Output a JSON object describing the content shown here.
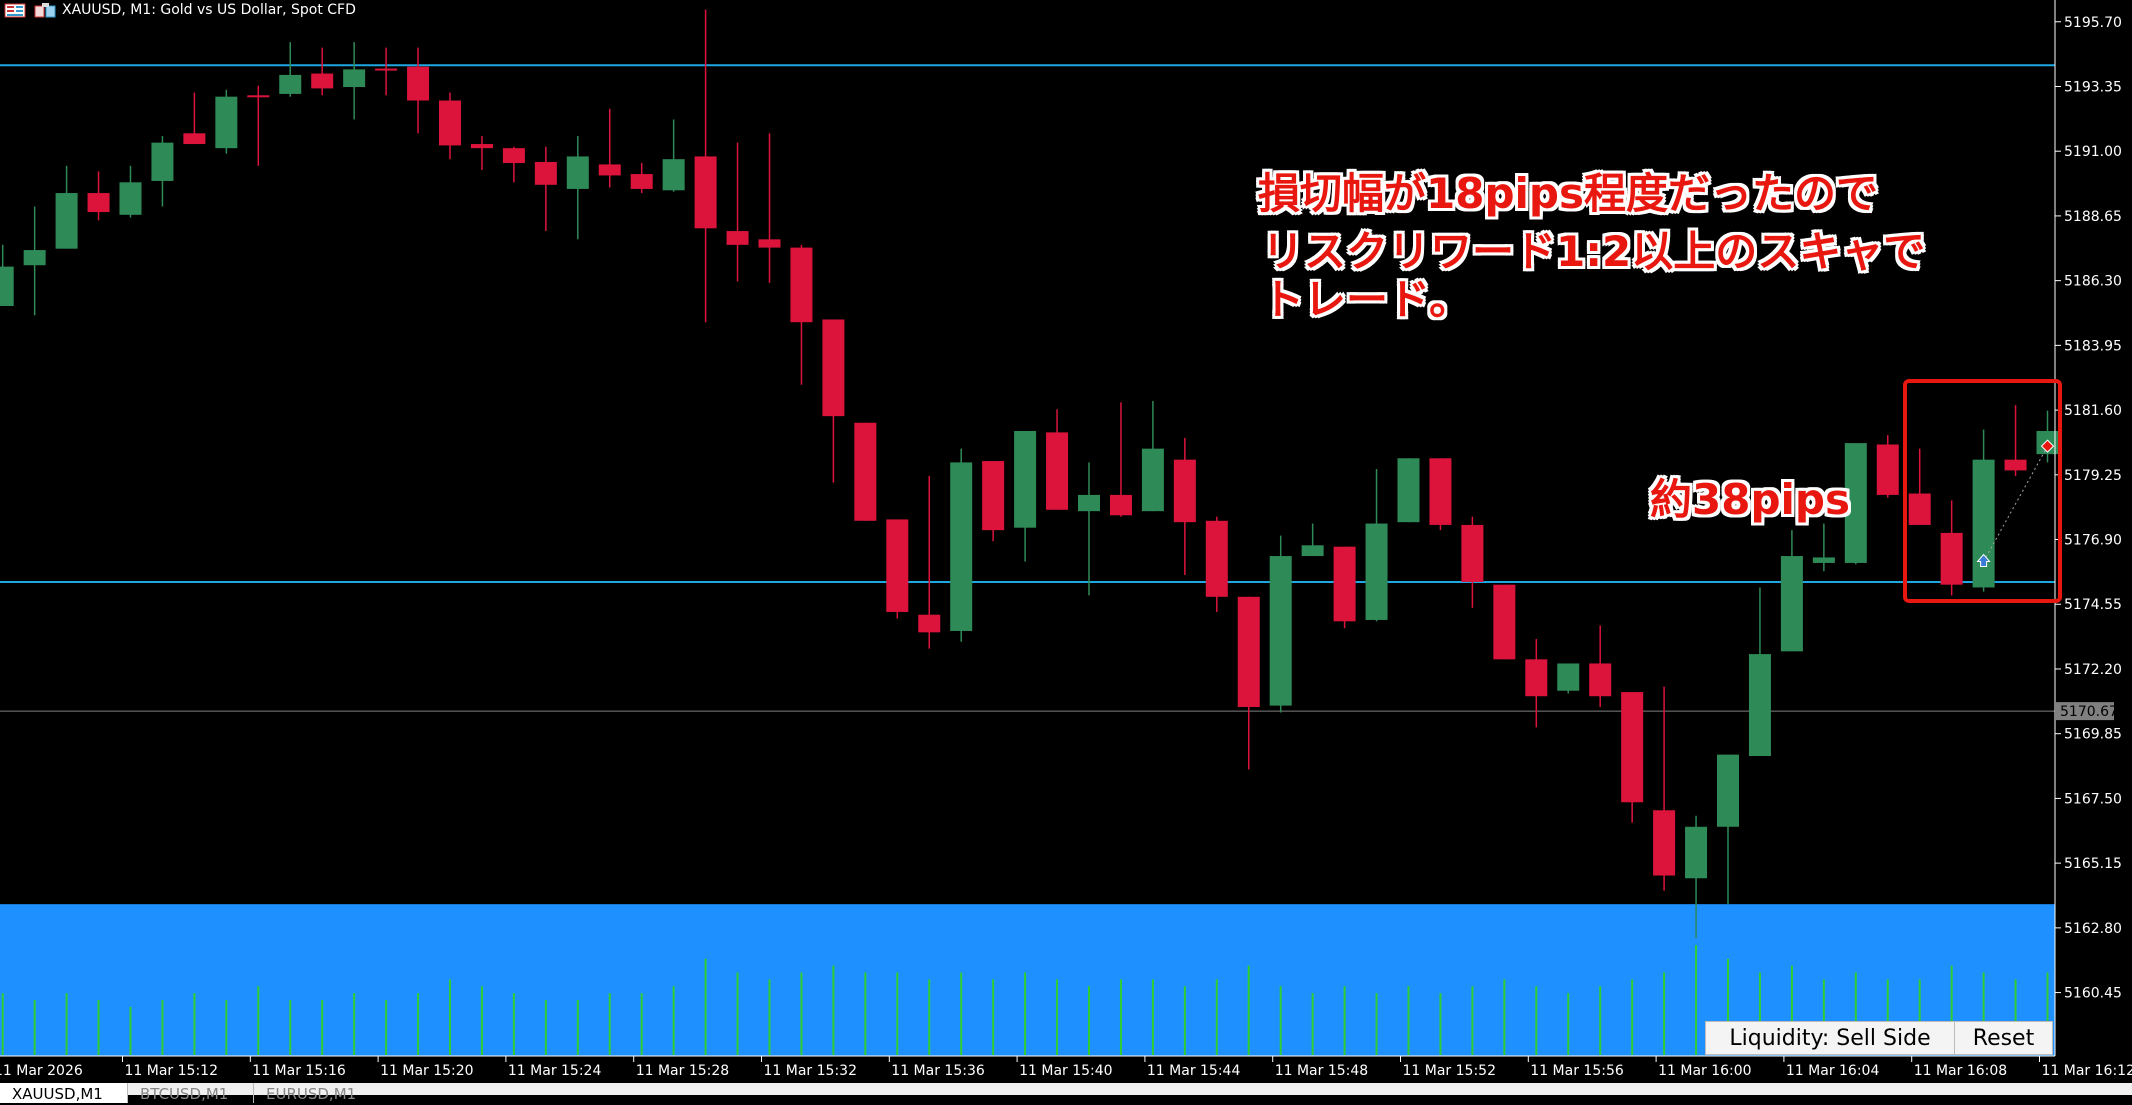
{
  "window": {
    "title": "XAUUSD, M1:  Gold vs US Dollar, Spot CFD"
  },
  "colors": {
    "bull": "#2e8b57",
    "bear": "#dc143c",
    "level_line": "#1ea7e0",
    "price_line": "#808080",
    "liquidity_zone": "#1e90ff",
    "volume": "#32cd32",
    "annotation": "#e8170f"
  },
  "chart_data": {
    "type": "candlestick",
    "symbol": "XAUUSD",
    "timeframe": "M1",
    "ylim": [
      5159.4,
      5196.5
    ],
    "price_ticks": [
      "5195.70",
      "5193.35",
      "5191.00",
      "5188.65",
      "5186.30",
      "5183.95",
      "5181.60",
      "5179.25",
      "5176.90",
      "5174.55",
      "5172.20",
      "5169.85",
      "5167.50",
      "5165.15",
      "5162.80",
      "5160.45"
    ],
    "current_price": "5170.67",
    "time_labels": [
      "11 Mar 2026",
      "11 Mar 15:12",
      "11 Mar 15:16",
      "11 Mar 15:20",
      "11 Mar 15:24",
      "11 Mar 15:28",
      "11 Mar 15:32",
      "11 Mar 15:36",
      "11 Mar 15:40",
      "11 Mar 15:44",
      "11 Mar 15:48",
      "11 Mar 15:52",
      "11 Mar 15:56",
      "11 Mar 16:00",
      "11 Mar 16:04",
      "11 Mar 16:08",
      "11 Mar 16:12"
    ],
    "horizontal_levels": [
      5194.12,
      5175.36
    ],
    "liquidity_zone_top": 5163.66,
    "ohlc": [
      [
        5185.38,
        5187.6,
        5185.38,
        5186.81
      ],
      [
        5186.86,
        5188.99,
        5185.04,
        5187.41
      ],
      [
        5187.46,
        5190.47,
        5187.46,
        5189.48
      ],
      [
        5189.48,
        5190.27,
        5188.49,
        5188.79
      ],
      [
        5188.69,
        5190.47,
        5188.59,
        5189.87
      ],
      [
        5189.92,
        5191.55,
        5188.99,
        5191.31
      ],
      [
        5191.65,
        5193.13,
        5191.26,
        5191.26
      ],
      [
        5191.11,
        5193.23,
        5190.91,
        5192.98
      ],
      [
        5193.03,
        5193.38,
        5190.47,
        5192.98
      ],
      [
        5193.08,
        5194.96,
        5192.98,
        5193.77
      ],
      [
        5193.82,
        5194.76,
        5193.03,
        5193.28
      ],
      [
        5193.33,
        5194.96,
        5192.15,
        5193.97
      ],
      [
        5194.0,
        5194.76,
        5193.03,
        5193.97
      ],
      [
        5194.07,
        5194.76,
        5191.65,
        5192.84
      ],
      [
        5192.84,
        5193.13,
        5190.71,
        5191.21
      ],
      [
        5191.26,
        5191.55,
        5190.32,
        5191.11
      ],
      [
        5191.11,
        5191.16,
        5189.87,
        5190.57
      ],
      [
        5190.61,
        5191.16,
        5188.1,
        5189.78
      ],
      [
        5189.63,
        5191.55,
        5187.8,
        5190.81
      ],
      [
        5190.52,
        5192.54,
        5189.68,
        5190.12
      ],
      [
        5190.17,
        5190.57,
        5189.48,
        5189.63
      ],
      [
        5189.58,
        5192.15,
        5189.53,
        5190.71
      ],
      [
        5190.81,
        5196.14,
        5184.79,
        5188.2
      ],
      [
        5188.1,
        5191.31,
        5186.27,
        5187.6
      ],
      [
        5187.8,
        5191.65,
        5186.22,
        5187.5
      ],
      [
        5187.5,
        5187.6,
        5182.52,
        5184.79
      ],
      [
        5184.89,
        5184.89,
        5178.96,
        5181.38
      ],
      [
        5181.14,
        5181.14,
        5177.58,
        5177.58
      ],
      [
        5177.63,
        5177.63,
        5174.03,
        5174.27
      ],
      [
        5174.17,
        5179.21,
        5172.94,
        5173.53
      ],
      [
        5173.58,
        5180.2,
        5173.19,
        5179.7
      ],
      [
        5179.75,
        5179.75,
        5176.84,
        5177.24
      ],
      [
        5177.33,
        5180.84,
        5176.1,
        5180.84
      ],
      [
        5180.79,
        5181.63,
        5177.98,
        5177.98
      ],
      [
        5177.93,
        5179.7,
        5174.87,
        5178.52
      ],
      [
        5178.52,
        5181.88,
        5177.73,
        5177.78
      ],
      [
        5177.93,
        5181.93,
        5177.93,
        5180.2
      ],
      [
        5179.8,
        5180.59,
        5175.61,
        5177.53
      ],
      [
        5177.58,
        5177.73,
        5174.27,
        5174.82
      ],
      [
        5174.82,
        5174.82,
        5168.55,
        5170.82
      ],
      [
        5170.87,
        5177.04,
        5170.62,
        5176.3
      ],
      [
        5176.3,
        5177.48,
        5176.3,
        5176.69
      ],
      [
        5176.64,
        5176.64,
        5173.68,
        5173.93
      ],
      [
        5173.98,
        5179.46,
        5173.93,
        5177.48
      ],
      [
        5177.53,
        5179.85,
        5177.53,
        5179.85
      ],
      [
        5179.85,
        5179.85,
        5177.24,
        5177.43
      ],
      [
        5177.43,
        5177.73,
        5174.42,
        5175.36
      ],
      [
        5175.26,
        5175.26,
        5172.55,
        5172.55
      ],
      [
        5172.55,
        5173.29,
        5170.08,
        5171.21
      ],
      [
        5171.41,
        5172.4,
        5171.31,
        5172.4
      ],
      [
        5172.4,
        5173.78,
        5170.82,
        5171.21
      ],
      [
        5171.36,
        5171.36,
        5166.62,
        5167.36
      ],
      [
        5167.07,
        5171.56,
        5164.15,
        5164.7
      ],
      [
        5164.6,
        5166.87,
        5162.42,
        5166.47
      ],
      [
        5166.47,
        5169.09,
        5163.66,
        5169.09
      ],
      [
        5169.04,
        5175.16,
        5169.04,
        5172.74
      ],
      [
        5172.84,
        5177.24,
        5172.84,
        5176.3
      ],
      [
        5176.05,
        5177.48,
        5175.75,
        5176.25
      ],
      [
        5176.05,
        5180.4,
        5176.0,
        5180.4
      ],
      [
        5180.35,
        5180.69,
        5178.42,
        5178.52
      ],
      [
        5178.57,
        5180.2,
        5177.43,
        5177.43
      ],
      [
        5177.14,
        5178.32,
        5174.87,
        5175.26
      ],
      [
        5175.16,
        5180.89,
        5175.01,
        5179.8
      ],
      [
        5179.8,
        5181.78,
        5179.21,
        5179.41
      ],
      [
        5180.0,
        5181.58,
        5179.7,
        5180.84
      ]
    ],
    "volume": [
      45,
      40,
      45,
      40,
      35,
      40,
      45,
      40,
      50,
      40,
      40,
      45,
      40,
      45,
      55,
      50,
      45,
      40,
      40,
      45,
      45,
      50,
      70,
      60,
      55,
      60,
      65,
      60,
      60,
      55,
      60,
      55,
      60,
      55,
      50,
      55,
      55,
      50,
      55,
      65,
      50,
      45,
      50,
      45,
      50,
      45,
      50,
      55,
      50,
      45,
      50,
      55,
      60,
      80,
      70,
      60,
      65,
      55,
      60,
      55,
      55,
      65,
      60,
      55,
      60
    ],
    "trade_markers": {
      "entry_candle": 62,
      "entry_price": 5176.1,
      "exit_candle": 64,
      "exit_price": 5180.29
    }
  },
  "annotations": {
    "line1": "損切幅が18pips程度だったので",
    "line2": "リスクリワード1:2以上のスキャで",
    "line3": "トレード。",
    "pips": "約38pips"
  },
  "buttons": {
    "liquidity": "Liquidity: Sell Side",
    "reset": "Reset"
  },
  "tabs": [
    "XAUUSD,M1",
    "BTCUSD,M1",
    "EURUSD,M1"
  ]
}
